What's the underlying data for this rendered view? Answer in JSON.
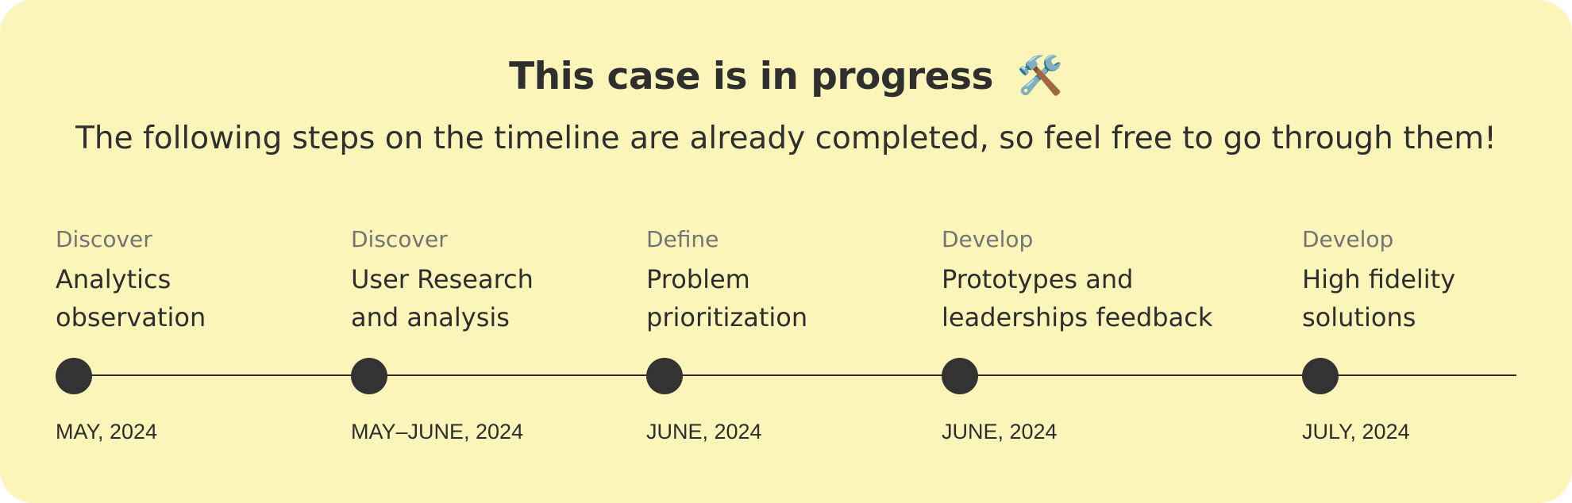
{
  "header": {
    "title": "This case is in progress",
    "title_icon": "🛠️",
    "subtitle": "The following steps on the timeline are already completed, so feel free to go through them!"
  },
  "timeline": {
    "steps": [
      {
        "phase": "Discover",
        "title_line_1": "Analytics",
        "title_line_2": "observation",
        "date": "MAY, 2024"
      },
      {
        "phase": "Discover",
        "title_line_1": "User Research",
        "title_line_2": "and analysis",
        "date": "MAY–JUNE, 2024"
      },
      {
        "phase": "Define",
        "title_line_1": "Problem",
        "title_line_2": "prioritization",
        "date": "JUNE, 2024"
      },
      {
        "phase": "Develop",
        "title_line_1": "Prototypes and",
        "title_line_2": "leaderships feedback",
        "date": "JUNE, 2024"
      },
      {
        "phase": "Develop",
        "title_line_1": "High fidelity",
        "title_line_2": "solutions",
        "date": "JULY, 2024"
      }
    ]
  },
  "colors": {
    "background": "#fcf5b9",
    "text": "#2d2d2d",
    "muted_text": "#747474",
    "timeline": "#333333"
  }
}
